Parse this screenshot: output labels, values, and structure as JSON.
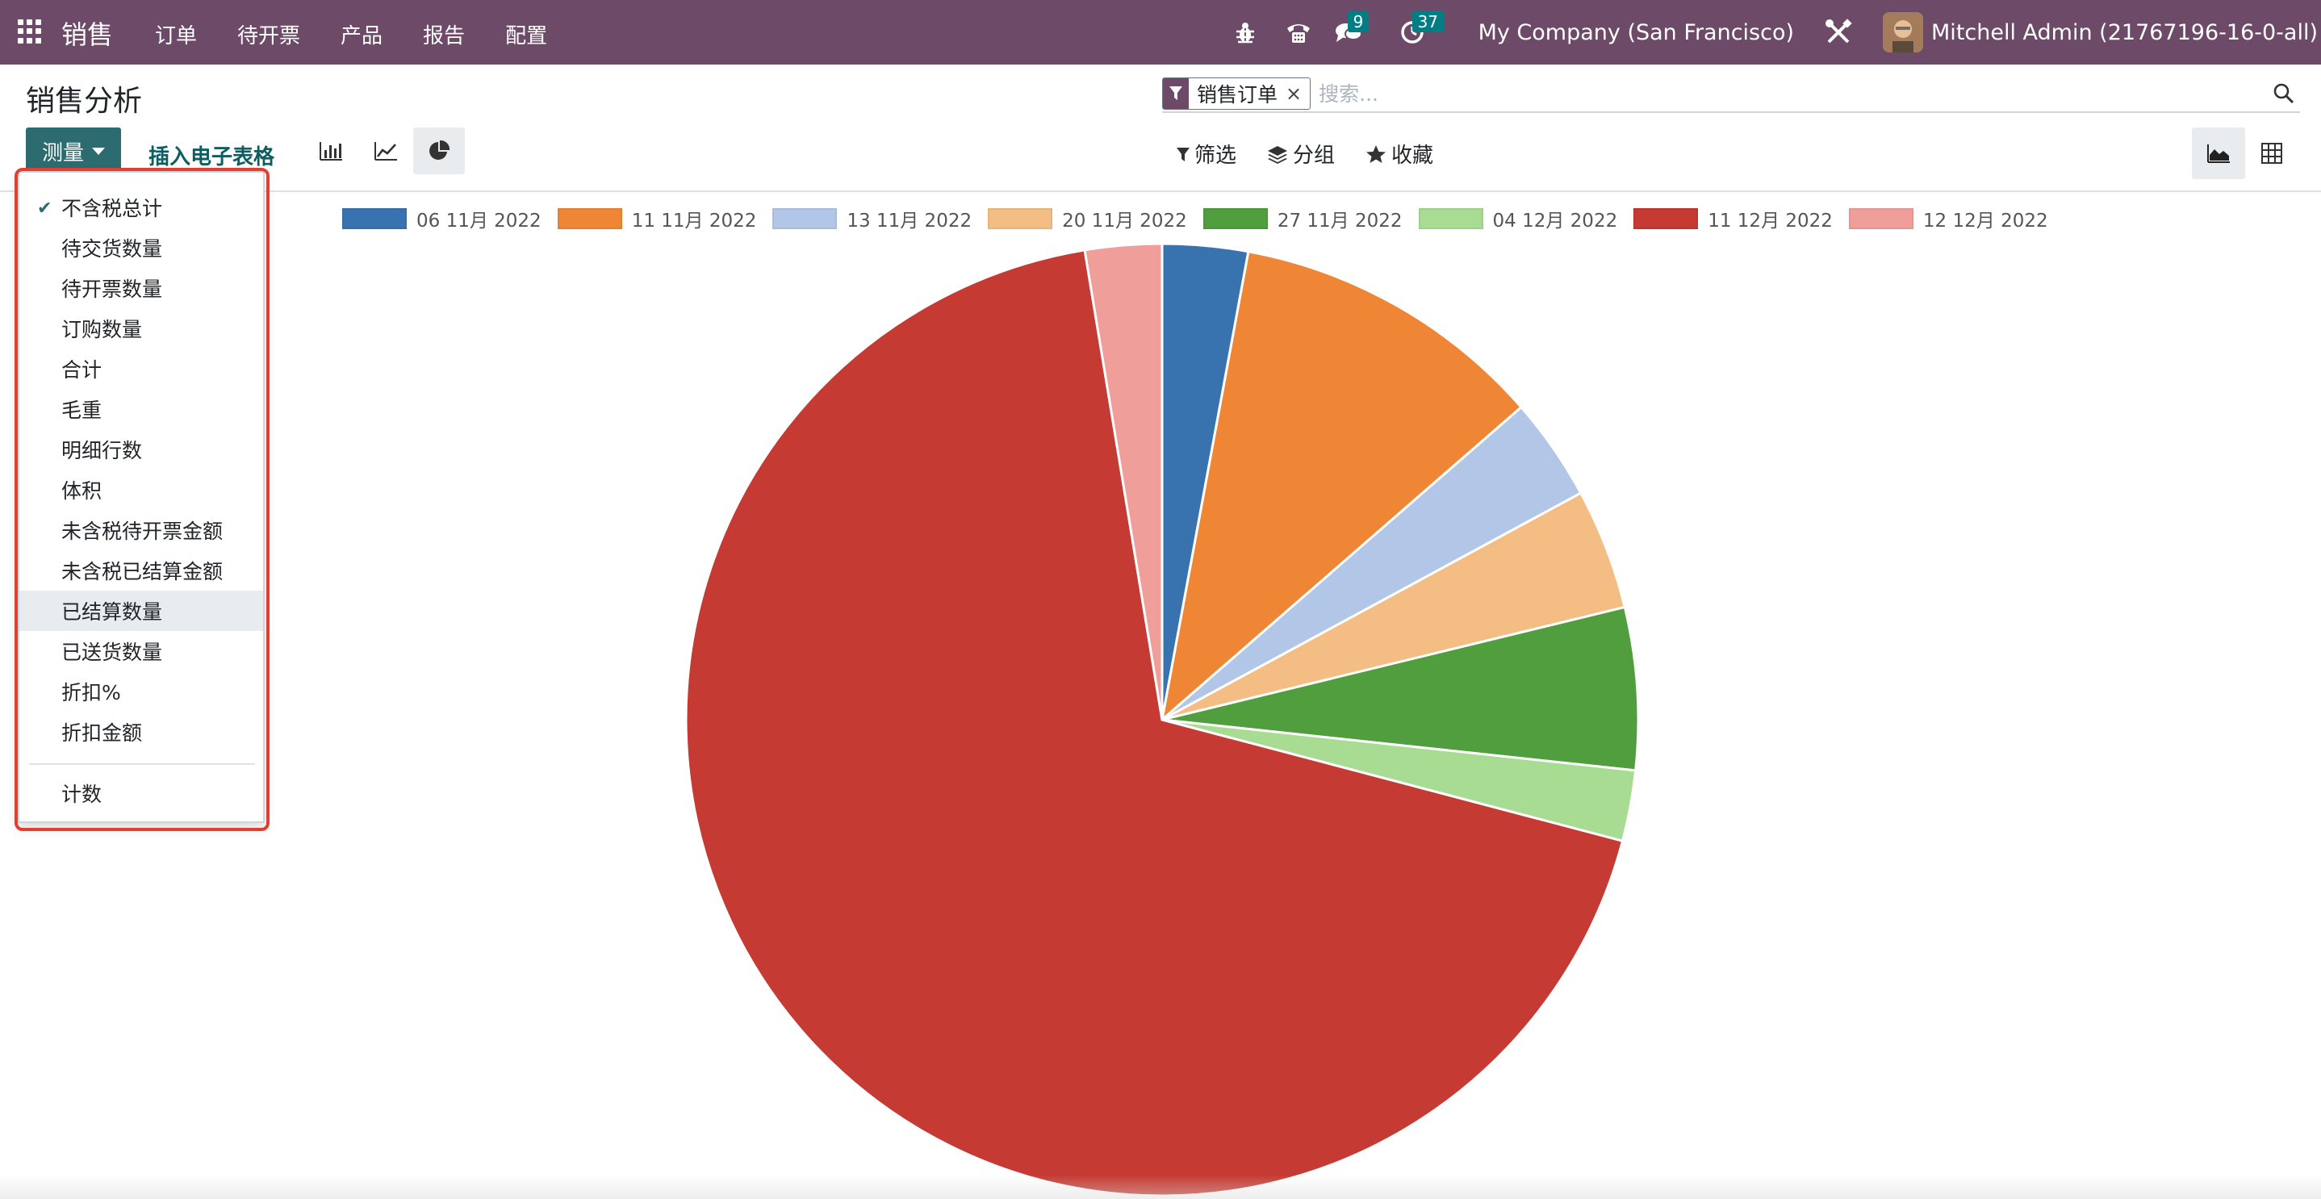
{
  "navbar": {
    "app_name": "销售",
    "menu": [
      "订单",
      "待开票",
      "产品",
      "报告",
      "配置"
    ],
    "messages_count": "9",
    "activities_count": "37",
    "company": "My Company (San Francisco)",
    "user": "Mitchell Admin (21767196-16-0-all)",
    "color": "#6d4a68",
    "icons": [
      "apps-icon",
      "bug-icon",
      "phone-icon",
      "chat-icon",
      "clock-icon",
      "tools-icon"
    ]
  },
  "control_panel": {
    "title": "销售分析",
    "search": {
      "facet_label": "销售订单",
      "facet_remove": "×",
      "placeholder": "搜索..."
    },
    "measure_button": "测量",
    "insert_spreadsheet": "插入电子表格",
    "filter_label": "筛选",
    "group_label": "分组",
    "favorite_label": "收藏",
    "active_chart_type": "pie"
  },
  "measure_menu": {
    "items": [
      {
        "label": "不含税总计",
        "checked": true
      },
      {
        "label": "待交货数量",
        "checked": false
      },
      {
        "label": "待开票数量",
        "checked": false
      },
      {
        "label": "订购数量",
        "checked": false
      },
      {
        "label": "合计",
        "checked": false
      },
      {
        "label": "毛重",
        "checked": false
      },
      {
        "label": "明细行数",
        "checked": false
      },
      {
        "label": "体积",
        "checked": false
      },
      {
        "label": "未含税待开票金额",
        "checked": false
      },
      {
        "label": "未含税已结算金额",
        "checked": false
      },
      {
        "label": "已结算数量",
        "checked": false,
        "hovered": true
      },
      {
        "label": "已送货数量",
        "checked": false
      },
      {
        "label": "折扣%",
        "checked": false
      },
      {
        "label": "折扣金额",
        "checked": false
      }
    ],
    "count_item": "计数",
    "check_mark": "✔"
  },
  "chart_data": {
    "type": "pie",
    "categories": [
      "06 11月 2022",
      "11 11月 2022",
      "13 11月 2022",
      "20 11月 2022",
      "27 11月 2022",
      "04 12月 2022",
      "11 12月 2022",
      "12 12月 2022"
    ],
    "values": [
      2.9,
      10.7,
      3.5,
      4.1,
      5.5,
      2.4,
      68.3,
      2.6
    ],
    "colors": [
      "#3873b0",
      "#ef8636",
      "#b2c7e8",
      "#f4bd84",
      "#519e3e",
      "#a8dc93",
      "#c53a32",
      "#f09e9a"
    ],
    "legend_position": "top",
    "start": "12 o'clock",
    "direction": "clockwise"
  }
}
